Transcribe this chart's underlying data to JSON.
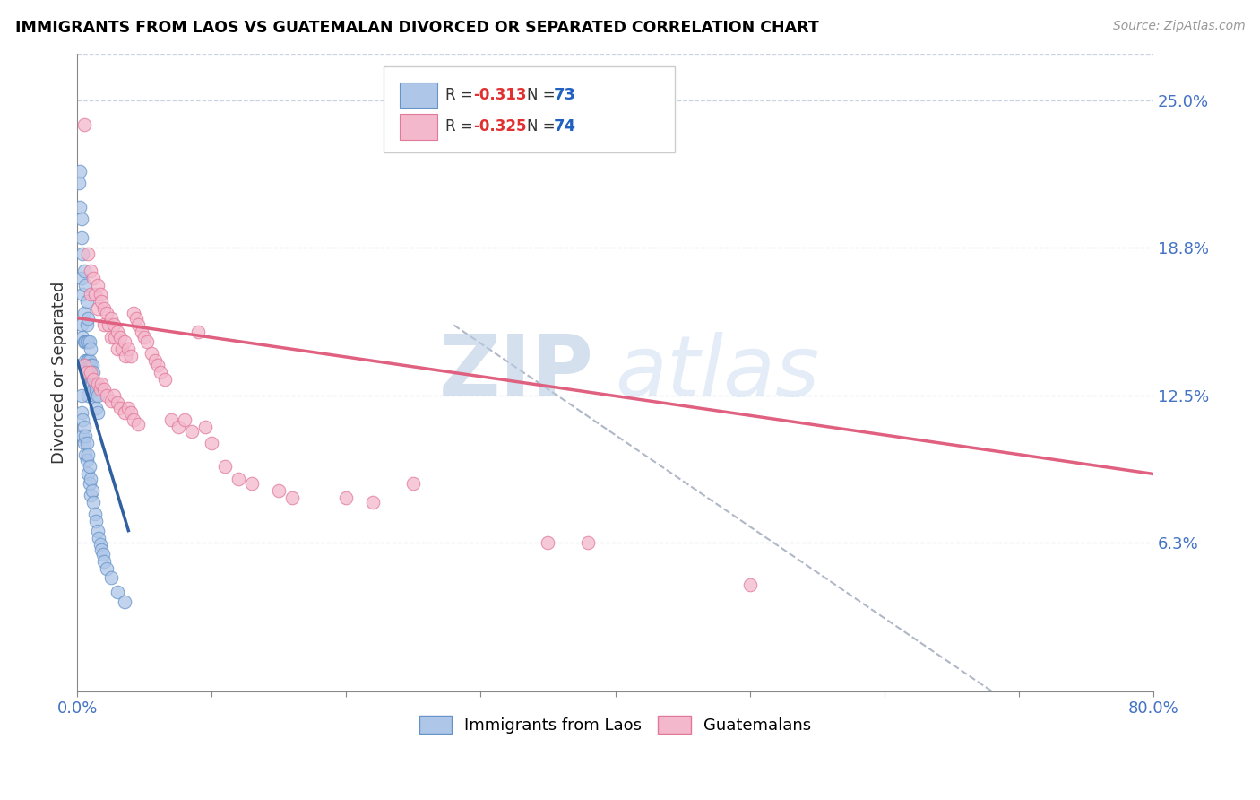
{
  "title": "IMMIGRANTS FROM LAOS VS GUATEMALAN DIVORCED OR SEPARATED CORRELATION CHART",
  "source": "Source: ZipAtlas.com",
  "ylabel": "Divorced or Separated",
  "right_yticks": [
    0.063,
    0.125,
    0.188,
    0.25
  ],
  "right_ytick_labels": [
    "6.3%",
    "12.5%",
    "18.8%",
    "25.0%"
  ],
  "legend_blue_label": "Immigrants from Laos",
  "legend_pink_label": "Guatemalans",
  "watermark_zip": "ZIP",
  "watermark_atlas": "atlas",
  "blue_color": "#aec6e8",
  "blue_edge_color": "#6694c8",
  "blue_line_color": "#3060a0",
  "pink_color": "#f4b8cc",
  "pink_edge_color": "#e07898",
  "pink_line_color": "#e06080",
  "dashed_line_color": "#b0b8c8",
  "blue_scatter": [
    [
      0.001,
      0.215
    ],
    [
      0.002,
      0.22
    ],
    [
      0.002,
      0.205
    ],
    [
      0.003,
      0.2
    ],
    [
      0.003,
      0.192
    ],
    [
      0.003,
      0.175
    ],
    [
      0.004,
      0.185
    ],
    [
      0.004,
      0.168
    ],
    [
      0.005,
      0.178
    ],
    [
      0.005,
      0.16
    ],
    [
      0.003,
      0.155
    ],
    [
      0.004,
      0.15
    ],
    [
      0.005,
      0.148
    ],
    [
      0.006,
      0.172
    ],
    [
      0.006,
      0.148
    ],
    [
      0.006,
      0.14
    ],
    [
      0.007,
      0.165
    ],
    [
      0.007,
      0.155
    ],
    [
      0.007,
      0.148
    ],
    [
      0.007,
      0.14
    ],
    [
      0.007,
      0.133
    ],
    [
      0.008,
      0.158
    ],
    [
      0.008,
      0.148
    ],
    [
      0.008,
      0.14
    ],
    [
      0.008,
      0.133
    ],
    [
      0.008,
      0.125
    ],
    [
      0.009,
      0.148
    ],
    [
      0.009,
      0.14
    ],
    [
      0.009,
      0.133
    ],
    [
      0.01,
      0.145
    ],
    [
      0.01,
      0.138
    ],
    [
      0.01,
      0.13
    ],
    [
      0.011,
      0.138
    ],
    [
      0.011,
      0.13
    ],
    [
      0.012,
      0.135
    ],
    [
      0.012,
      0.128
    ],
    [
      0.013,
      0.13
    ],
    [
      0.013,
      0.125
    ],
    [
      0.014,
      0.128
    ],
    [
      0.014,
      0.12
    ],
    [
      0.015,
      0.125
    ],
    [
      0.015,
      0.118
    ],
    [
      0.003,
      0.125
    ],
    [
      0.003,
      0.118
    ],
    [
      0.004,
      0.115
    ],
    [
      0.004,
      0.108
    ],
    [
      0.005,
      0.112
    ],
    [
      0.005,
      0.105
    ],
    [
      0.006,
      0.108
    ],
    [
      0.006,
      0.1
    ],
    [
      0.007,
      0.105
    ],
    [
      0.007,
      0.098
    ],
    [
      0.008,
      0.1
    ],
    [
      0.008,
      0.092
    ],
    [
      0.009,
      0.095
    ],
    [
      0.009,
      0.088
    ],
    [
      0.01,
      0.09
    ],
    [
      0.01,
      0.083
    ],
    [
      0.011,
      0.085
    ],
    [
      0.012,
      0.08
    ],
    [
      0.013,
      0.075
    ],
    [
      0.014,
      0.072
    ],
    [
      0.015,
      0.068
    ],
    [
      0.016,
      0.065
    ],
    [
      0.017,
      0.062
    ],
    [
      0.018,
      0.06
    ],
    [
      0.019,
      0.058
    ],
    [
      0.02,
      0.055
    ],
    [
      0.022,
      0.052
    ],
    [
      0.025,
      0.048
    ],
    [
      0.03,
      0.042
    ],
    [
      0.035,
      0.038
    ]
  ],
  "pink_scatter": [
    [
      0.005,
      0.24
    ],
    [
      0.008,
      0.185
    ],
    [
      0.01,
      0.178
    ],
    [
      0.01,
      0.168
    ],
    [
      0.012,
      0.175
    ],
    [
      0.013,
      0.168
    ],
    [
      0.015,
      0.172
    ],
    [
      0.015,
      0.162
    ],
    [
      0.017,
      0.168
    ],
    [
      0.018,
      0.165
    ],
    [
      0.02,
      0.162
    ],
    [
      0.02,
      0.155
    ],
    [
      0.022,
      0.16
    ],
    [
      0.023,
      0.155
    ],
    [
      0.025,
      0.158
    ],
    [
      0.025,
      0.15
    ],
    [
      0.027,
      0.155
    ],
    [
      0.028,
      0.15
    ],
    [
      0.03,
      0.152
    ],
    [
      0.03,
      0.145
    ],
    [
      0.032,
      0.15
    ],
    [
      0.033,
      0.145
    ],
    [
      0.035,
      0.148
    ],
    [
      0.036,
      0.142
    ],
    [
      0.038,
      0.145
    ],
    [
      0.04,
      0.142
    ],
    [
      0.042,
      0.16
    ],
    [
      0.044,
      0.158
    ],
    [
      0.045,
      0.155
    ],
    [
      0.048,
      0.152
    ],
    [
      0.05,
      0.15
    ],
    [
      0.052,
      0.148
    ],
    [
      0.005,
      0.138
    ],
    [
      0.007,
      0.135
    ],
    [
      0.01,
      0.135
    ],
    [
      0.012,
      0.132
    ],
    [
      0.015,
      0.13
    ],
    [
      0.017,
      0.128
    ],
    [
      0.018,
      0.13
    ],
    [
      0.02,
      0.128
    ],
    [
      0.022,
      0.125
    ],
    [
      0.025,
      0.123
    ],
    [
      0.027,
      0.125
    ],
    [
      0.03,
      0.122
    ],
    [
      0.032,
      0.12
    ],
    [
      0.035,
      0.118
    ],
    [
      0.038,
      0.12
    ],
    [
      0.04,
      0.118
    ],
    [
      0.042,
      0.115
    ],
    [
      0.045,
      0.113
    ],
    [
      0.055,
      0.143
    ],
    [
      0.058,
      0.14
    ],
    [
      0.06,
      0.138
    ],
    [
      0.062,
      0.135
    ],
    [
      0.065,
      0.132
    ],
    [
      0.07,
      0.115
    ],
    [
      0.075,
      0.112
    ],
    [
      0.08,
      0.115
    ],
    [
      0.085,
      0.11
    ],
    [
      0.09,
      0.152
    ],
    [
      0.095,
      0.112
    ],
    [
      0.1,
      0.105
    ],
    [
      0.11,
      0.095
    ],
    [
      0.12,
      0.09
    ],
    [
      0.13,
      0.088
    ],
    [
      0.15,
      0.085
    ],
    [
      0.16,
      0.082
    ],
    [
      0.2,
      0.082
    ],
    [
      0.22,
      0.08
    ],
    [
      0.25,
      0.088
    ],
    [
      0.35,
      0.063
    ],
    [
      0.38,
      0.063
    ],
    [
      0.5,
      0.045
    ]
  ],
  "xlim": [
    0.0,
    0.8
  ],
  "ylim": [
    0.0,
    0.27
  ],
  "blue_line_x": [
    0.0,
    0.038
  ],
  "blue_line_y": [
    0.14,
    0.068
  ],
  "pink_line_x": [
    0.0,
    0.8
  ],
  "pink_line_y": [
    0.158,
    0.092
  ],
  "dashed_line_x": [
    0.28,
    0.68
  ],
  "dashed_line_y": [
    0.155,
    0.0
  ]
}
